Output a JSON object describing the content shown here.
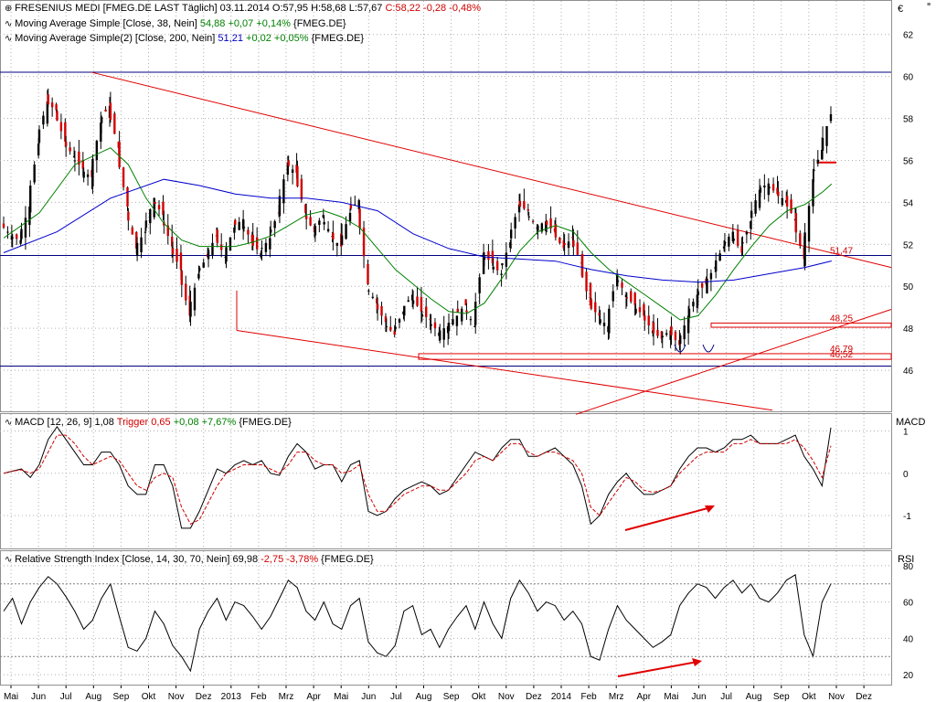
{
  "price_panel": {
    "title": "FRESENIUS MEDI [FMEG.DE LAST Täglich] 03.11.2014",
    "ohlc_o": "O:57,95",
    "ohlc_h": "H:58,68",
    "ohlc_l": "L:57,67",
    "ohlc_c": "C:58,22 -0,28 -0,48%",
    "currency": "€",
    "ma1_name": "Moving Average Simple [Close, 38, Nein]",
    "ma1_values": "54,88 +0,07 +0,14%",
    "ma1_sym": "{FMEG.DE}",
    "ma2_name": "Moving Average Simple(2) [Close, 200, Nein]",
    "ma2_value": "51,21",
    "ma2_change": "+0,02 +0,05%",
    "ma2_sym": "{FMEG.DE}"
  },
  "macd_panel": {
    "name": "MACD [12, 26, 9] 1,08",
    "trigger": "Trigger 0,65",
    "change": "+0,08 +7,67%",
    "sym": "{FMEG.DE}",
    "axis_title": "MACD"
  },
  "rsi_panel": {
    "name": "Relative Strength Index [Close, 14, 30, 70, Nein] 69,98",
    "change": "-2,75 -3,78%",
    "sym": "{FMEG.DE}",
    "axis_title": "RSI"
  },
  "colors": {
    "candle_up": "#000000",
    "candle_down": "#d00000",
    "ma38": "#008000",
    "ma200": "#0000cc",
    "trendline": "#e00000",
    "support": "#000080",
    "macd": "#000000",
    "trigger": "#d00000",
    "grid": "#b0b0b0"
  },
  "chart_data": [
    {
      "type": "candlestick",
      "x": [
        "Mai",
        "Jun",
        "Jul",
        "Aug",
        "Sep",
        "Okt",
        "Nov",
        "Dez",
        "2013",
        "Feb",
        "Mrz",
        "Apr",
        "Mai",
        "Jun",
        "Jul",
        "Aug",
        "Sep",
        "Okt",
        "Nov",
        "Dez",
        "2014",
        "Feb",
        "Mrz",
        "Apr",
        "Mai",
        "Jun",
        "Jul",
        "Aug",
        "Sep",
        "Okt",
        "Nov",
        "Dez"
      ],
      "y_ticks": [
        46,
        48,
        50,
        52,
        54,
        56,
        58,
        60,
        62
      ],
      "ylim": [
        44,
        63.6
      ],
      "ylabel": "€",
      "close_path": [
        [
          0,
          53
        ],
        [
          1,
          52.4
        ],
        [
          2,
          52.2
        ],
        [
          3,
          53.8
        ],
        [
          4,
          56.8
        ],
        [
          5,
          58.8
        ],
        [
          6,
          58.4
        ],
        [
          7,
          56.9
        ],
        [
          8,
          56.2
        ],
        [
          9,
          55.6
        ],
        [
          10,
          55.2
        ],
        [
          11,
          57.8
        ],
        [
          12,
          58.6
        ],
        [
          13,
          56.6
        ],
        [
          14,
          53.8
        ],
        [
          15,
          51.8
        ],
        [
          16,
          52.6
        ],
        [
          17,
          54.2
        ],
        [
          18,
          53.4
        ],
        [
          19,
          51.9
        ],
        [
          20,
          50.8
        ],
        [
          21,
          48.6
        ],
        [
          22,
          50.6
        ],
        [
          23,
          51.4
        ],
        [
          24,
          52.4
        ],
        [
          25,
          51.4
        ],
        [
          26,
          52.8
        ],
        [
          27,
          53.2
        ],
        [
          28,
          52.1
        ],
        [
          29,
          51.6
        ],
        [
          30,
          52.3
        ],
        [
          31,
          53.5
        ],
        [
          32,
          55.9
        ],
        [
          33,
          55.4
        ],
        [
          34,
          53.5
        ],
        [
          35,
          52.6
        ],
        [
          36,
          53.4
        ],
        [
          37,
          52.4
        ],
        [
          38,
          51.9
        ],
        [
          39,
          53.5
        ],
        [
          40,
          54.1
        ],
        [
          41,
          50.1
        ],
        [
          42,
          49.2
        ],
        [
          43,
          48.3
        ],
        [
          44,
          47.7
        ],
        [
          45,
          48.8
        ],
        [
          46,
          49.6
        ],
        [
          47,
          48.8
        ],
        [
          48,
          48.4
        ],
        [
          49,
          47.8
        ],
        [
          50,
          48.1
        ],
        [
          51,
          48.6
        ],
        [
          52,
          49.1
        ],
        [
          53,
          48.1
        ],
        [
          54,
          51.6
        ],
        [
          55,
          51.1
        ],
        [
          56,
          50.6
        ],
        [
          57,
          52.1
        ],
        [
          58,
          53.9
        ],
        [
          59,
          53.6
        ],
        [
          60,
          52.8
        ],
        [
          61,
          53.1
        ],
        [
          62,
          52.6
        ],
        [
          63,
          51.8
        ],
        [
          64,
          52.3
        ],
        [
          65,
          51.1
        ],
        [
          66,
          49.1
        ],
        [
          67,
          48.6
        ],
        [
          68,
          48.1
        ],
        [
          69,
          50.6
        ],
        [
          70,
          49.6
        ],
        [
          71,
          49.1
        ],
        [
          72,
          48.6
        ],
        [
          73,
          47.9
        ],
        [
          74,
          47.5
        ],
        [
          75,
          47.9
        ],
        [
          76,
          47.2
        ],
        [
          77,
          48.6
        ],
        [
          78,
          49.6
        ],
        [
          79,
          50.1
        ],
        [
          80,
          50.9
        ],
        [
          81,
          51.9
        ],
        [
          82,
          52.6
        ],
        [
          83,
          51.6
        ],
        [
          84,
          53.1
        ],
        [
          85,
          54.6
        ],
        [
          86,
          54.9
        ],
        [
          87,
          54.4
        ],
        [
          88,
          54.1
        ],
        [
          89,
          53.2
        ],
        [
          90,
          51.3
        ],
        [
          91,
          55.1
        ],
        [
          92,
          56.5
        ],
        [
          93,
          58.2
        ]
      ],
      "ma38_path": [
        [
          0,
          52.3
        ],
        [
          4,
          53.5
        ],
        [
          8,
          55.8
        ],
        [
          12,
          56.6
        ],
        [
          14,
          55.8
        ],
        [
          16,
          54.2
        ],
        [
          18,
          53.0
        ],
        [
          20,
          52.2
        ],
        [
          22,
          51.9
        ],
        [
          24,
          51.9
        ],
        [
          26,
          51.9
        ],
        [
          28,
          52.1
        ],
        [
          30,
          52.4
        ],
        [
          32,
          52.9
        ],
        [
          34,
          53.4
        ],
        [
          36,
          53.6
        ],
        [
          38,
          53.3
        ],
        [
          40,
          52.8
        ],
        [
          42,
          51.8
        ],
        [
          44,
          50.8
        ],
        [
          46,
          50.1
        ],
        [
          48,
          49.4
        ],
        [
          50,
          48.8
        ],
        [
          52,
          48.7
        ],
        [
          54,
          49.2
        ],
        [
          56,
          50.4
        ],
        [
          58,
          51.7
        ],
        [
          60,
          52.6
        ],
        [
          62,
          52.9
        ],
        [
          64,
          52.6
        ],
        [
          66,
          51.6
        ],
        [
          68,
          50.8
        ],
        [
          70,
          50.2
        ],
        [
          72,
          49.6
        ],
        [
          74,
          49.0
        ],
        [
          76,
          48.4
        ],
        [
          78,
          48.6
        ],
        [
          80,
          49.6
        ],
        [
          82,
          50.8
        ],
        [
          84,
          51.9
        ],
        [
          86,
          52.9
        ],
        [
          88,
          53.6
        ],
        [
          90,
          53.9
        ],
        [
          92,
          54.5
        ],
        [
          93,
          54.88
        ]
      ],
      "ma200_path": [
        [
          0,
          51.6
        ],
        [
          6,
          52.6
        ],
        [
          12,
          54.2
        ],
        [
          18,
          55.1
        ],
        [
          22,
          54.8
        ],
        [
          26,
          54.4
        ],
        [
          30,
          54.2
        ],
        [
          34,
          54.2
        ],
        [
          38,
          54.0
        ],
        [
          42,
          53.6
        ],
        [
          46,
          52.5
        ],
        [
          50,
          51.8
        ],
        [
          54,
          51.4
        ],
        [
          58,
          51.3
        ],
        [
          62,
          51.2
        ],
        [
          66,
          50.8
        ],
        [
          70,
          50.5
        ],
        [
          74,
          50.3
        ],
        [
          78,
          50.2
        ],
        [
          82,
          50.3
        ],
        [
          86,
          50.6
        ],
        [
          90,
          50.9
        ],
        [
          93,
          51.21
        ]
      ],
      "series": [
        {
          "name": "Moving Average Simple [Close, 38, Nein]",
          "last": 54.88
        },
        {
          "name": "Moving Average Simple(2) [Close, 200, Nein]",
          "last": 51.21
        }
      ],
      "annotations": [
        "51,47",
        "48,25",
        "46,79",
        "46,52"
      ]
    },
    {
      "type": "line",
      "y_ticks": [
        -1,
        0,
        1
      ],
      "ylim": [
        -1.8,
        1.4
      ],
      "ylabel": "MACD",
      "series": [
        {
          "name": "MACD [12, 26, 9] 1,08",
          "values": [
            0,
            0.05,
            0.1,
            -0.1,
            0.2,
            0.8,
            1.1,
            0.8,
            0.5,
            0.2,
            0.2,
            0.5,
            0.5,
            0.2,
            -0.3,
            -0.5,
            -0.5,
            0.2,
            0.2,
            -0.3,
            -1.3,
            -1.3,
            -0.9,
            -0.4,
            0.1,
            0,
            0.2,
            0.3,
            0.2,
            0.3,
            0,
            -0.05,
            0.4,
            0.7,
            0.5,
            0.1,
            0.2,
            0.2,
            -0.2,
            0.2,
            0.3,
            -0.9,
            -1.0,
            -0.9,
            -0.6,
            -0.4,
            -0.3,
            -0.2,
            -0.3,
            -0.5,
            -0.4,
            -0.1,
            0.2,
            0.5,
            0.4,
            0.3,
            0.6,
            0.8,
            0.8,
            0.4,
            0.4,
            0.5,
            0.6,
            0.4,
            0.2,
            -0.3,
            -1.2,
            -1.0,
            -0.5,
            -0.2,
            0,
            -0.3,
            -0.5,
            -0.5,
            -0.4,
            -0.3,
            0.1,
            0.4,
            0.6,
            0.6,
            0.5,
            0.6,
            0.8,
            0.8,
            0.9,
            0.7,
            0.7,
            0.7,
            0.8,
            0.9,
            0.4,
            0.1,
            -0.3,
            1.08
          ]
        },
        {
          "name": "Trigger 0,65",
          "values": [
            0,
            0.05,
            0.08,
            0,
            0.1,
            0.5,
            0.9,
            0.9,
            0.7,
            0.4,
            0.2,
            0.3,
            0.4,
            0.3,
            0,
            -0.3,
            -0.4,
            -0.1,
            0,
            -0.1,
            -0.8,
            -1.2,
            -1.1,
            -0.7,
            -0.3,
            0,
            0.1,
            0.2,
            0.2,
            0.2,
            0.1,
            0,
            0.2,
            0.5,
            0.5,
            0.3,
            0.2,
            0.2,
            0,
            0.05,
            0.2,
            -0.5,
            -0.9,
            -0.9,
            -0.7,
            -0.5,
            -0.4,
            -0.3,
            -0.3,
            -0.4,
            -0.4,
            -0.2,
            0,
            0.3,
            0.4,
            0.3,
            0.5,
            0.7,
            0.7,
            0.5,
            0.4,
            0.5,
            0.5,
            0.4,
            0.3,
            0,
            -0.8,
            -1.0,
            -0.7,
            -0.4,
            -0.1,
            -0.2,
            -0.4,
            -0.45,
            -0.4,
            -0.3,
            0,
            0.2,
            0.4,
            0.5,
            0.5,
            0.5,
            0.7,
            0.7,
            0.8,
            0.7,
            0.7,
            0.7,
            0.7,
            0.8,
            0.6,
            0.3,
            -0.1,
            0.65
          ]
        }
      ]
    },
    {
      "type": "line",
      "y_ticks": [
        20,
        40,
        60,
        80
      ],
      "ylim": [
        14,
        88
      ],
      "ylabel": "RSI",
      "series": [
        {
          "name": "Relative Strength Index [Close, 14, 30, 70, Nein] 69,98",
          "values": [
            55,
            62,
            48,
            60,
            68,
            74,
            70,
            63,
            55,
            45,
            50,
            62,
            70,
            52,
            35,
            33,
            40,
            55,
            48,
            36,
            30,
            22,
            45,
            55,
            62,
            50,
            60,
            58,
            52,
            45,
            52,
            62,
            72,
            68,
            55,
            50,
            60,
            48,
            45,
            58,
            62,
            38,
            32,
            30,
            36,
            55,
            58,
            42,
            45,
            35,
            45,
            52,
            58,
            45,
            60,
            48,
            40,
            62,
            72,
            65,
            55,
            60,
            58,
            50,
            55,
            48,
            30,
            28,
            45,
            58,
            50,
            45,
            40,
            35,
            38,
            42,
            58,
            65,
            70,
            68,
            62,
            68,
            72,
            65,
            70,
            62,
            60,
            65,
            72,
            75,
            42,
            30,
            60,
            69.98
          ]
        }
      ]
    }
  ]
}
